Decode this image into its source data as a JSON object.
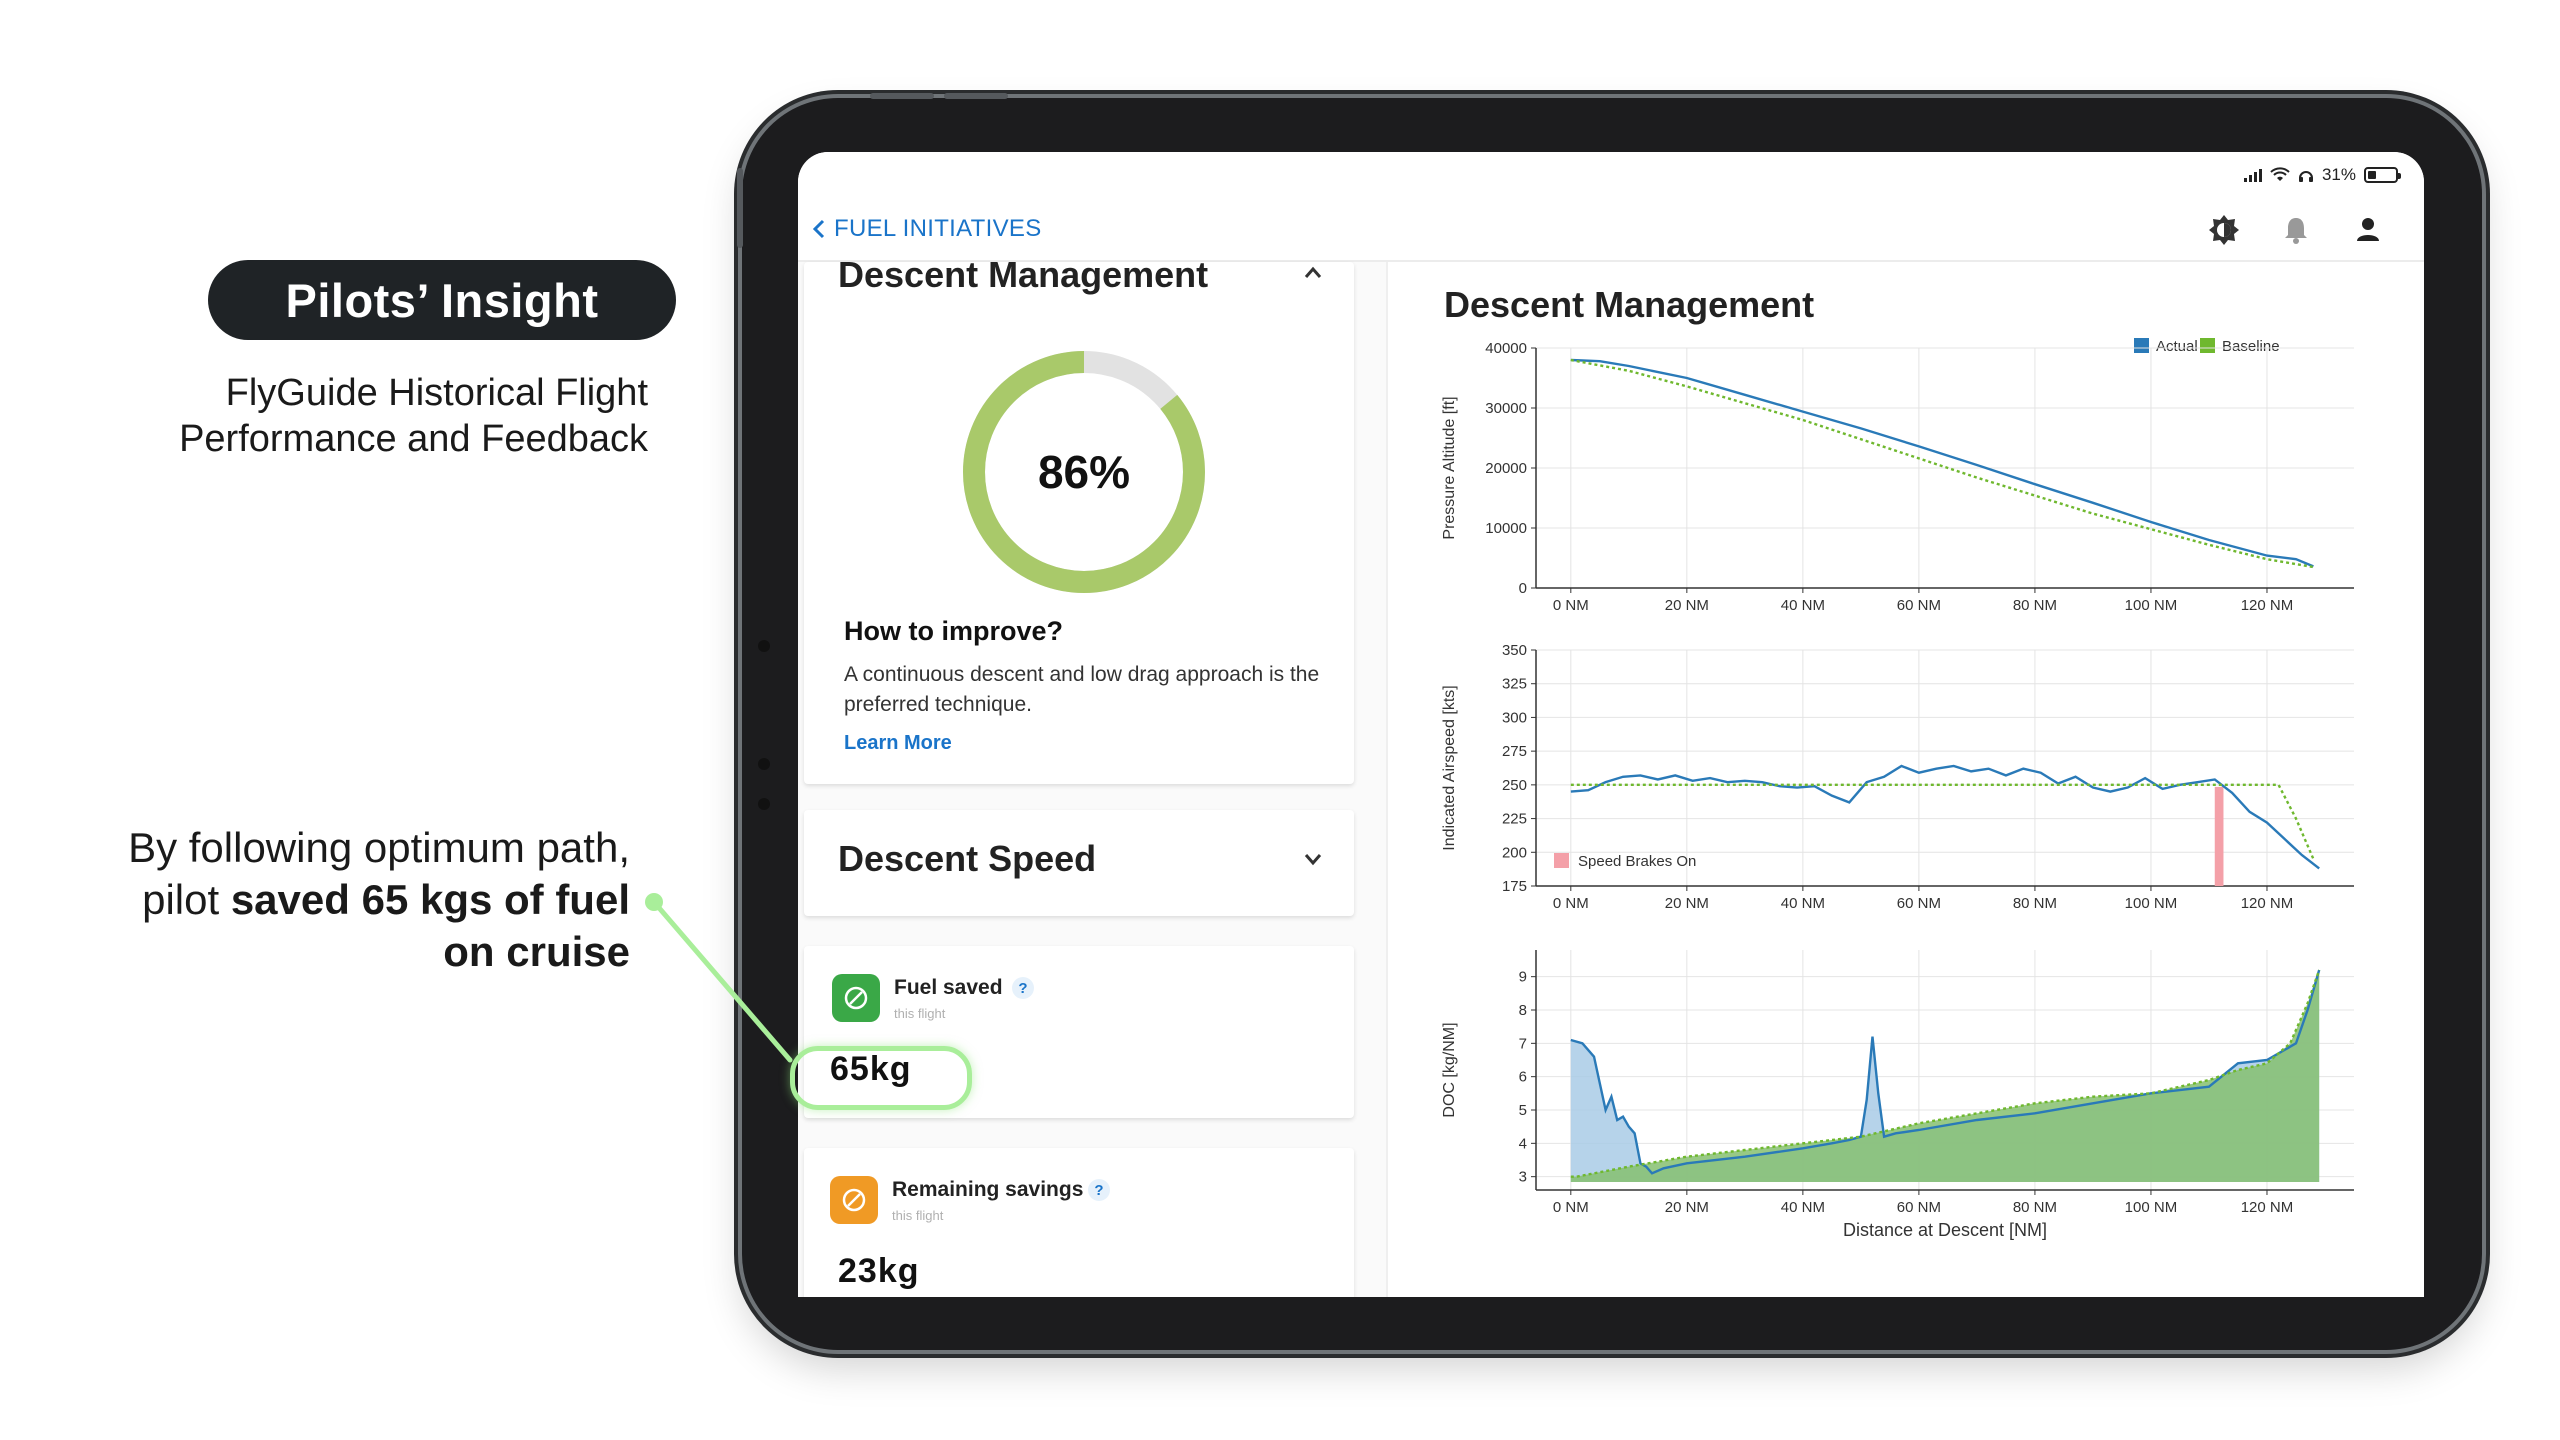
{
  "marketing": {
    "pill": "Pilots’ Insight",
    "subtitle_line1": "FlyGuide Historical Flight",
    "subtitle_line2": "Performance and Feedback",
    "callout_line1": "By following optimum path,",
    "callout_pre": "pilot ",
    "callout_bold": "saved 65 kgs of fuel",
    "callout_line3": "on cruise"
  },
  "status_bar": {
    "battery": "31%",
    "battery_level": 0.31
  },
  "nav": {
    "back_label": "FUEL INITIATIVES",
    "icons": [
      "brightness-icon",
      "bell-icon",
      "user-icon"
    ]
  },
  "cards": {
    "descent_management": {
      "title": "Descent Management",
      "score_label": "86%",
      "score": 0.86,
      "improve_heading": "How to improve?",
      "improve_text": "A continuous descent and low drag approach is the preferred technique.",
      "learn_more": "Learn More"
    },
    "descent_speed": {
      "title": "Descent Speed"
    },
    "fuel_saved": {
      "title": "Fuel saved",
      "sub": "this flight",
      "help": "?",
      "value": "65kg"
    },
    "remaining_savings": {
      "title": "Remaining savings",
      "sub": "this flight",
      "help": "?",
      "value": "23kg"
    }
  },
  "colors": {
    "actual": "#2a7ab8",
    "baseline": "#6fb82e",
    "accent": "#1a74c9",
    "donut": "#a9c96a",
    "donut_track": "#e2e2e2",
    "speed_brakes": "#f4a0a8"
  },
  "panel": {
    "title": "Descent Management",
    "legend": {
      "actual": "Actual",
      "baseline": "Baseline"
    },
    "xlabel": "Distance at Descent [NM]"
  },
  "chart_data": [
    {
      "type": "line",
      "ylabel": "Pressure Altitude [ft]",
      "xlim": [
        -6,
        135
      ],
      "ylim": [
        0,
        40000
      ],
      "x_ticks": [
        0,
        20,
        40,
        60,
        80,
        100,
        120
      ],
      "x_tick_labels": [
        "0 NM",
        "20 NM",
        "40 NM",
        "60 NM",
        "80 NM",
        "100 NM",
        "120 NM"
      ],
      "y_ticks": [
        0,
        10000,
        20000,
        30000,
        40000
      ],
      "y_tick_labels": [
        "0",
        "10000",
        "20000",
        "30000",
        "40000"
      ],
      "series": [
        {
          "name": "Actual",
          "x": [
            0,
            5,
            10,
            20,
            30,
            40,
            50,
            60,
            70,
            80,
            90,
            100,
            110,
            120,
            125,
            128
          ],
          "y": [
            38000,
            37800,
            37000,
            35000,
            32200,
            29400,
            26600,
            23600,
            20500,
            17300,
            14200,
            11000,
            8000,
            5400,
            4800,
            3600
          ]
        },
        {
          "name": "Baseline",
          "x": [
            0,
            10,
            20,
            30,
            40,
            50,
            60,
            70,
            80,
            90,
            100,
            110,
            120,
            128
          ],
          "y": [
            38000,
            36200,
            33600,
            30800,
            28000,
            24800,
            21600,
            18400,
            15400,
            12400,
            9800,
            7200,
            4800,
            3500
          ]
        }
      ]
    },
    {
      "type": "line",
      "ylabel": "Indicated Airspeed [kts]",
      "xlim": [
        -6,
        135
      ],
      "ylim": [
        175,
        350
      ],
      "x_ticks": [
        0,
        20,
        40,
        60,
        80,
        100,
        120
      ],
      "x_tick_labels": [
        "0 NM",
        "20 NM",
        "40 NM",
        "60 NM",
        "80 NM",
        "100 NM",
        "120 NM"
      ],
      "y_ticks": [
        175,
        200,
        225,
        250,
        275,
        300,
        325,
        350
      ],
      "y_tick_labels": [
        "175",
        "200",
        "225",
        "250",
        "275",
        "300",
        "325",
        "350"
      ],
      "annotation": {
        "label": "Speed Brakes On",
        "x_start": 111,
        "x_end": 112.5
      },
      "series": [
        {
          "name": "Actual",
          "x": [
            0,
            3,
            6,
            9,
            12,
            15,
            18,
            21,
            24,
            27,
            30,
            33,
            36,
            39,
            42,
            45,
            48,
            51,
            54,
            57,
            60,
            63,
            66,
            69,
            72,
            75,
            78,
            81,
            84,
            87,
            90,
            93,
            96,
            99,
            102,
            105,
            108,
            111,
            114,
            117,
            120,
            123,
            126,
            129
          ],
          "y": [
            245,
            246,
            252,
            256,
            257,
            254,
            257,
            253,
            255,
            252,
            253,
            252,
            249,
            248,
            249,
            242,
            237,
            252,
            256,
            264,
            259,
            262,
            264,
            260,
            262,
            257,
            262,
            259,
            251,
            256,
            248,
            245,
            248,
            255,
            247,
            250,
            252,
            254,
            244,
            230,
            222,
            210,
            198,
            188
          ]
        },
        {
          "name": "Baseline",
          "x": [
            0,
            20,
            40,
            60,
            80,
            100,
            110,
            122,
            125,
            128
          ],
          "y": [
            250,
            250,
            250,
            250,
            250,
            250,
            250,
            250,
            225,
            195
          ]
        }
      ]
    },
    {
      "type": "area",
      "ylabel": "DOC [kg/NM]",
      "xlim": [
        -6,
        135
      ],
      "ylim": [
        2.6,
        9.8
      ],
      "x_ticks": [
        0,
        20,
        40,
        60,
        80,
        100,
        120
      ],
      "x_tick_labels": [
        "0 NM",
        "20 NM",
        "40 NM",
        "60 NM",
        "80 NM",
        "100 NM",
        "120 NM"
      ],
      "y_ticks": [
        3,
        4,
        5,
        6,
        7,
        8,
        9
      ],
      "y_tick_labels": [
        "3",
        "4",
        "5",
        "6",
        "7",
        "8",
        "9"
      ],
      "series": [
        {
          "name": "Actual",
          "x": [
            0,
            2,
            4,
            5,
            6,
            7,
            8,
            9,
            10,
            11,
            12,
            13,
            14,
            16,
            20,
            30,
            40,
            45,
            48,
            50,
            51,
            52,
            53,
            54,
            56,
            60,
            70,
            80,
            90,
            100,
            110,
            115,
            120,
            125,
            127,
            129
          ],
          "y": [
            7.1,
            7.0,
            6.6,
            5.8,
            5.0,
            5.4,
            4.7,
            4.8,
            4.5,
            4.3,
            3.4,
            3.3,
            3.1,
            3.25,
            3.4,
            3.6,
            3.85,
            4.0,
            4.1,
            4.2,
            5.3,
            7.2,
            5.5,
            4.2,
            4.3,
            4.4,
            4.7,
            4.9,
            5.2,
            5.5,
            5.7,
            6.4,
            6.5,
            7.0,
            8.0,
            9.2
          ]
        },
        {
          "name": "Baseline",
          "x": [
            0,
            1,
            10,
            20,
            30,
            40,
            50,
            60,
            70,
            80,
            90,
            100,
            110,
            115,
            120,
            124,
            127,
            129
          ],
          "y": [
            3.0,
            3.0,
            3.3,
            3.6,
            3.8,
            4.0,
            4.2,
            4.6,
            4.9,
            5.2,
            5.4,
            5.5,
            5.9,
            6.2,
            6.4,
            7.0,
            8.2,
            9.2
          ]
        }
      ]
    }
  ]
}
